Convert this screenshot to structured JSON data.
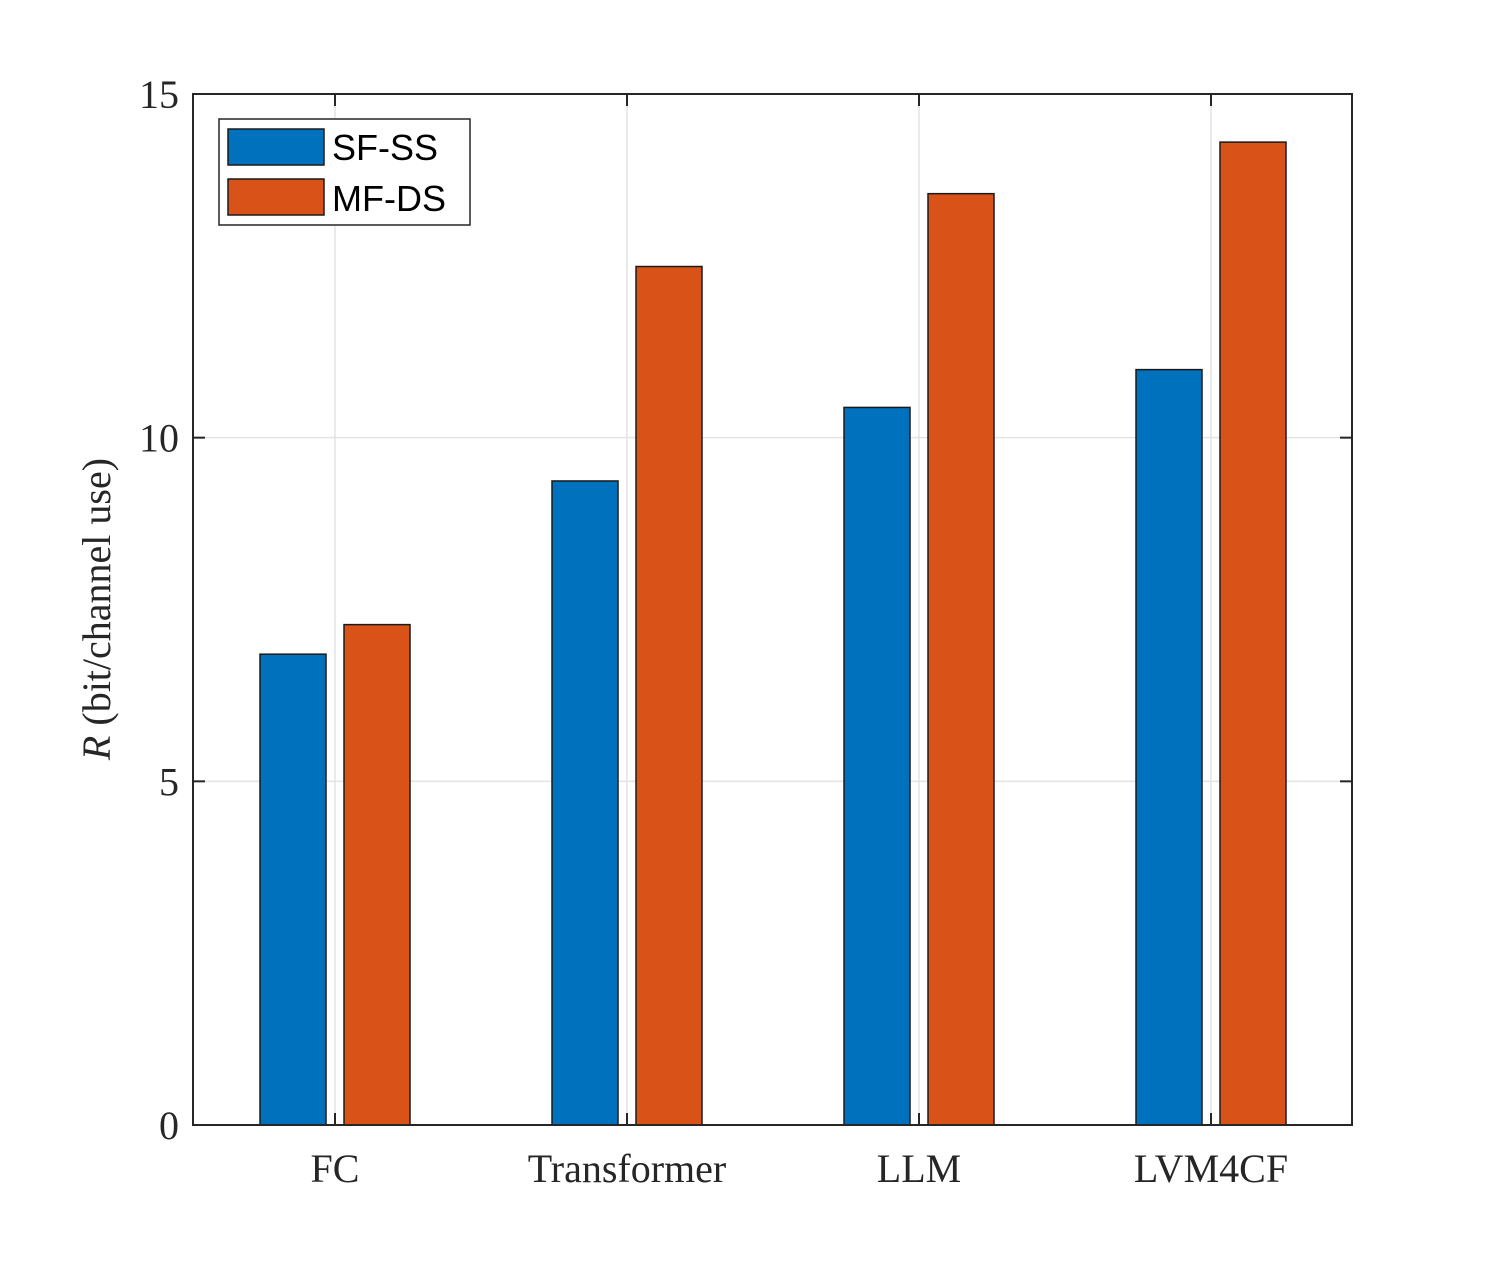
{
  "chart_data": {
    "type": "bar",
    "title": "",
    "xlabel": "",
    "ylabel_var": "R",
    "ylabel_unit": " (bit/channel use)",
    "categories": [
      "FC",
      "Transformer",
      "LLM",
      "LVM4CF"
    ],
    "series": [
      {
        "name": "SF-SS",
        "color": "#0072BD",
        "values": [
          6.85,
          9.37,
          10.44,
          10.99
        ]
      },
      {
        "name": "MF-DS",
        "color": "#D95319",
        "values": [
          7.28,
          12.49,
          13.55,
          14.3
        ]
      }
    ],
    "ylim": [
      0,
      15
    ],
    "yticks": [
      0,
      5,
      10,
      15
    ],
    "grid": true,
    "legend_location": "top-left"
  }
}
